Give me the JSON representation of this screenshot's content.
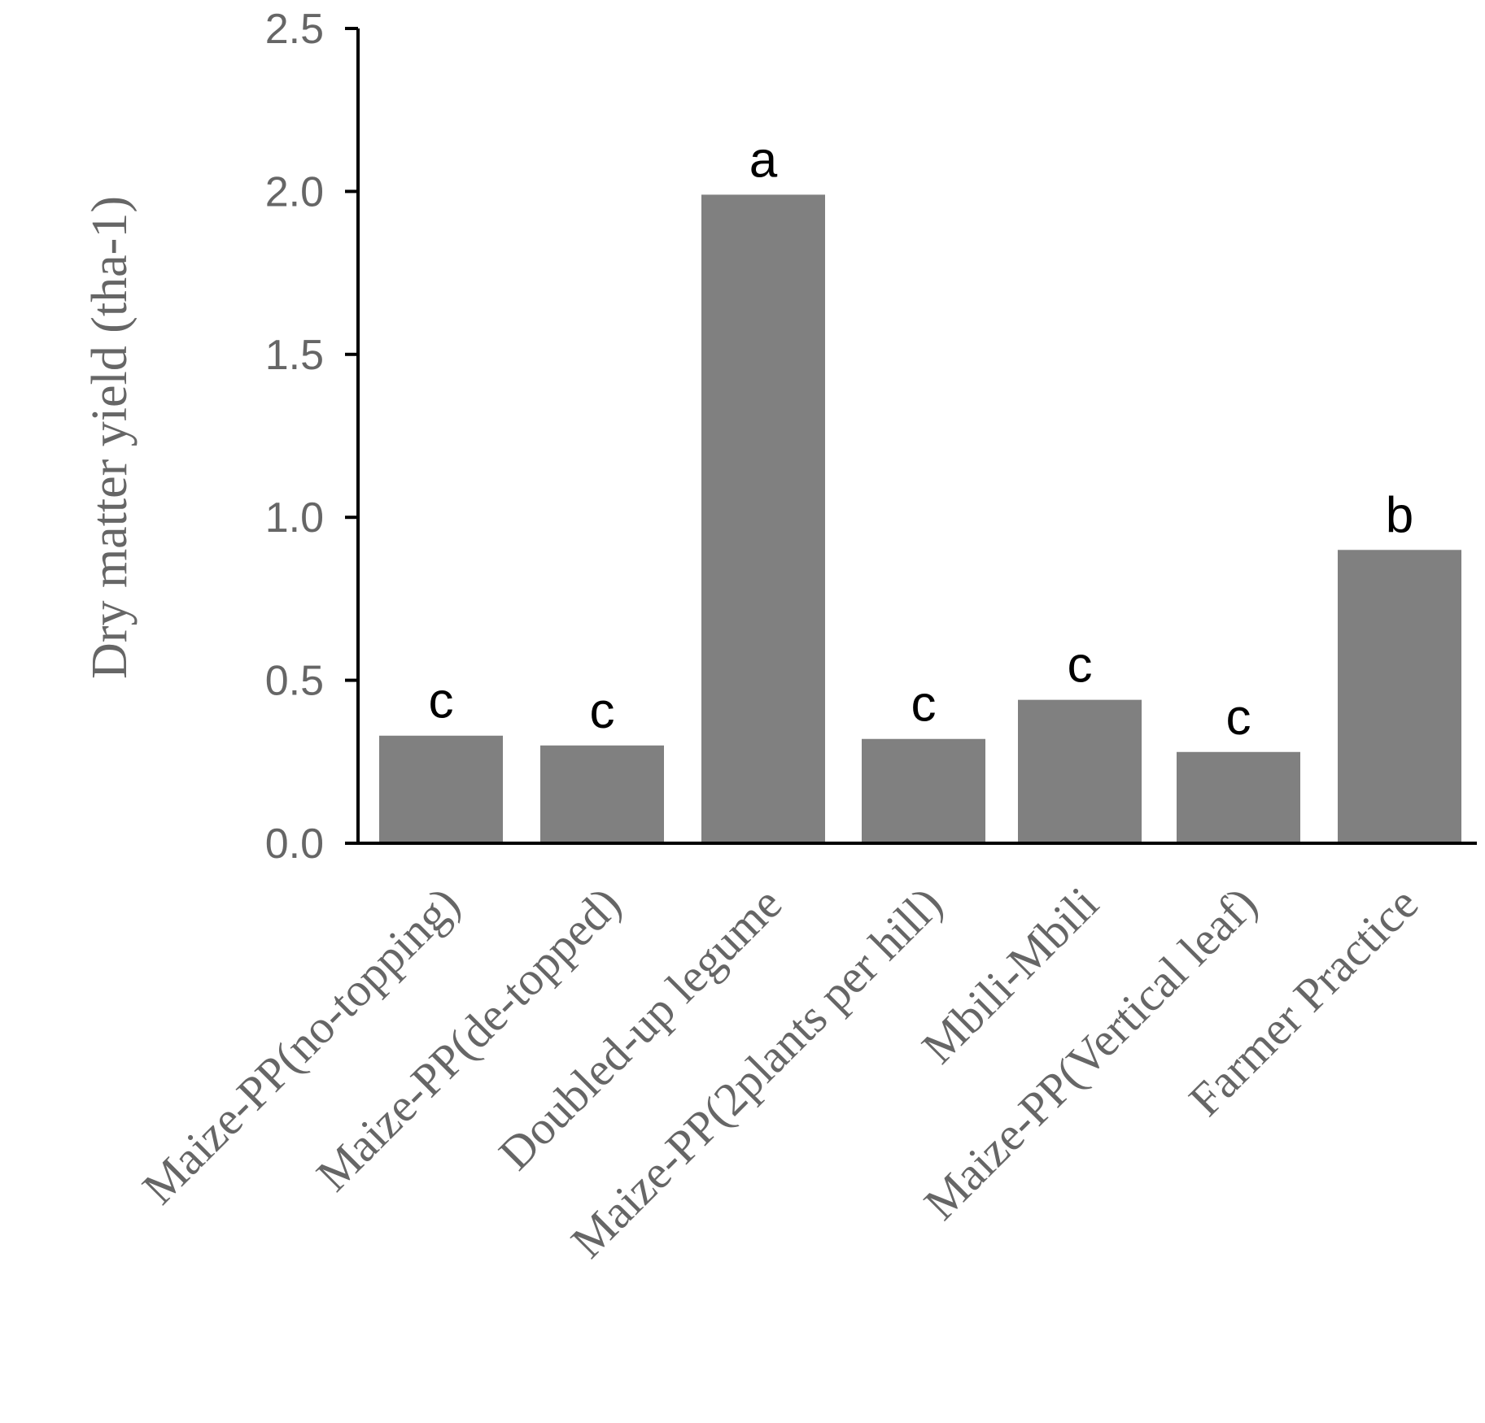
{
  "chart_data": {
    "type": "bar",
    "title": "",
    "xlabel": "",
    "ylabel": "Dry matter yield (tha-1)",
    "ylim": [
      0,
      2.5
    ],
    "yticks": [
      "0.0",
      "0.5",
      "1.0",
      "1.5",
      "2.0",
      "2.5"
    ],
    "grid": false,
    "legend": "none",
    "categories": [
      "Maize-PP(no-topping)",
      "Maize-PP(de-topped)",
      "Doubled-up legume",
      "Maize-PP(2plants per hill)",
      "Mbili-Mbili",
      "Maize-PP(Vertical leaf)",
      "Farmer Practice"
    ],
    "values": [
      0.33,
      0.3,
      1.99,
      0.32,
      0.44,
      0.28,
      0.9
    ],
    "significance_letters": [
      "c",
      "c",
      "a",
      "c",
      "c",
      "c",
      "b"
    ],
    "colors": {
      "bar": "#808080",
      "axis": "#000000",
      "text": "#666666",
      "letters": "#000000"
    }
  }
}
